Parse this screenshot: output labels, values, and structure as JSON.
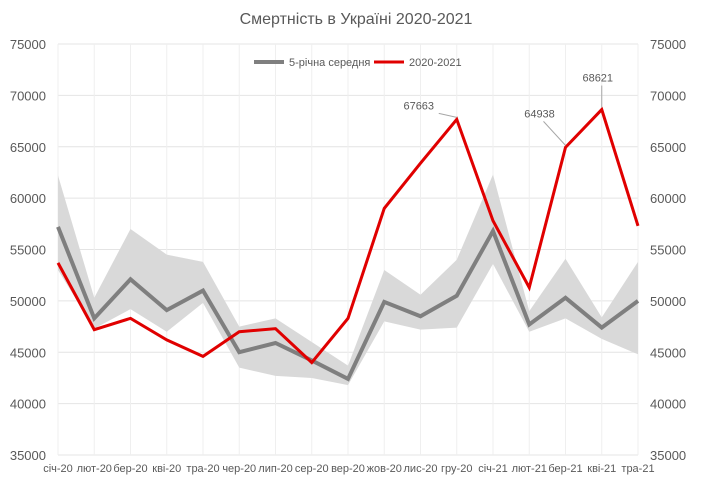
{
  "chart_data": {
    "type": "line",
    "title": "Смертність в Україні 2020-2021",
    "categories": [
      "січ-20",
      "лют-20",
      "бер-20",
      "кві-20",
      "тра-20",
      "чер-20",
      "лип-20",
      "сер-20",
      "вер-20",
      "жов-20",
      "лис-20",
      "гру-20",
      "січ-21",
      "лют-21",
      "бер-21",
      "кві-21",
      "тра-21"
    ],
    "ylim": [
      35000,
      75000
    ],
    "yticks": [
      "35000",
      "40000",
      "45000",
      "50000",
      "55000",
      "60000",
      "65000",
      "70000",
      "75000"
    ],
    "series": [
      {
        "name": "5-річна середня",
        "color": "#7f7f7f",
        "values": [
          57200,
          48300,
          52100,
          49100,
          51000,
          45000,
          45900,
          44200,
          42400,
          49900,
          48500,
          50500,
          56800,
          47700,
          50300,
          47400,
          50000
        ]
      },
      {
        "name": "2020-2021",
        "color": "#e00000",
        "values": [
          53700,
          47200,
          48300,
          46200,
          44600,
          47000,
          47300,
          44000,
          48300,
          59000,
          63400,
          67663,
          57800,
          51300,
          64938,
          68621,
          57300
        ]
      }
    ],
    "band": {
      "color": "#d9d9d9",
      "max": [
        62200,
        50300,
        57000,
        54500,
        53800,
        47500,
        48300,
        46000,
        43700,
        53000,
        50600,
        54000,
        62300,
        49000,
        54100,
        48400,
        53800
      ],
      "min": [
        53000,
        47300,
        49200,
        47000,
        49800,
        43500,
        42700,
        42500,
        41800,
        48000,
        47200,
        47400,
        53600,
        47000,
        48300,
        46300,
        44800
      ]
    },
    "annotations": [
      {
        "index": 11,
        "label": "67663"
      },
      {
        "index": 14,
        "label": "64938"
      },
      {
        "index": 15,
        "label": "68621"
      }
    ],
    "legend": "top-center",
    "grid": true
  }
}
